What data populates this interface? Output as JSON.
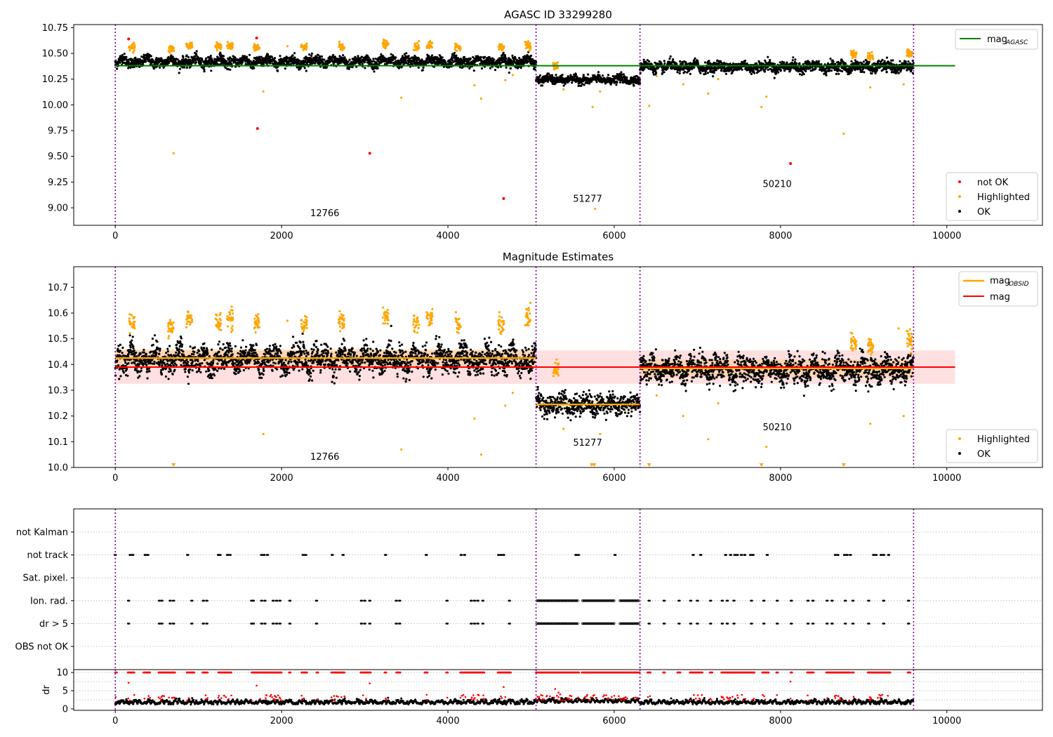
{
  "chart_data": [
    {
      "type": "scatter",
      "title": "AGASC ID 33299280",
      "xlim": [
        -500,
        11150
      ],
      "ylim": [
        8.83,
        10.78
      ],
      "xticks": [
        0,
        2000,
        4000,
        6000,
        8000,
        10000
      ],
      "yticks": [
        9.0,
        9.25,
        9.5,
        9.75,
        10.0,
        10.25,
        10.5,
        10.75
      ],
      "ytick_labels": [
        "9.00",
        "9.25",
        "9.50",
        "9.75",
        "10.00",
        "10.25",
        "10.50",
        "10.75"
      ],
      "obsid_boundaries": [
        0,
        5060,
        6310,
        9600
      ],
      "obsid_labels": [
        {
          "text": "12766",
          "x": 2520,
          "y": 8.92
        },
        {
          "text": "51277",
          "x": 5680,
          "y": 9.06
        },
        {
          "text": "50210",
          "x": 7960,
          "y": 9.2
        }
      ],
      "segments": [
        {
          "x0": 0,
          "x1": 5060,
          "base": 10.42,
          "amp": 0.035,
          "noise": 0.025
        },
        {
          "x0": 5060,
          "x1": 6310,
          "base": 10.245,
          "amp": 0.02,
          "noise": 0.02
        },
        {
          "x0": 6310,
          "x1": 9600,
          "base": 10.37,
          "amp": 0.03,
          "noise": 0.025
        }
      ],
      "reference_lines": [
        {
          "name": "mag_AGASC",
          "y": 10.38,
          "x0": 0,
          "x1": 10100,
          "color": "#008000"
        }
      ],
      "highlighted_clusters": [
        {
          "x": 200,
          "y": 10.56
        },
        {
          "x": 670,
          "y": 10.54
        },
        {
          "x": 890,
          "y": 10.58
        },
        {
          "x": 1240,
          "y": 10.57
        },
        {
          "x": 1380,
          "y": 10.58
        },
        {
          "x": 1700,
          "y": 10.56
        },
        {
          "x": 2270,
          "y": 10.56
        },
        {
          "x": 2720,
          "y": 10.57
        },
        {
          "x": 3250,
          "y": 10.59
        },
        {
          "x": 3620,
          "y": 10.56
        },
        {
          "x": 3780,
          "y": 10.58
        },
        {
          "x": 4120,
          "y": 10.56
        },
        {
          "x": 4640,
          "y": 10.56
        },
        {
          "x": 4960,
          "y": 10.58
        },
        {
          "x": 5300,
          "y": 10.38
        },
        {
          "x": 8880,
          "y": 10.49
        },
        {
          "x": 9080,
          "y": 10.47
        },
        {
          "x": 9550,
          "y": 10.5
        }
      ],
      "highlighted_points": [
        {
          "x": 700,
          "y": 9.53
        },
        {
          "x": 1780,
          "y": 10.13
        },
        {
          "x": 2070,
          "y": 10.57
        },
        {
          "x": 3440,
          "y": 10.07
        },
        {
          "x": 4320,
          "y": 10.19
        },
        {
          "x": 4400,
          "y": 10.06
        },
        {
          "x": 4690,
          "y": 10.24
        },
        {
          "x": 4780,
          "y": 10.29
        },
        {
          "x": 5390,
          "y": 10.15
        },
        {
          "x": 5740,
          "y": 9.98
        },
        {
          "x": 5770,
          "y": 8.99
        },
        {
          "x": 5830,
          "y": 10.13
        },
        {
          "x": 6420,
          "y": 9.99
        },
        {
          "x": 6510,
          "y": 10.28
        },
        {
          "x": 6830,
          "y": 10.2
        },
        {
          "x": 7130,
          "y": 10.11
        },
        {
          "x": 7250,
          "y": 10.25
        },
        {
          "x": 7770,
          "y": 9.98
        },
        {
          "x": 7830,
          "y": 10.08
        },
        {
          "x": 8760,
          "y": 9.72
        },
        {
          "x": 9080,
          "y": 10.17
        },
        {
          "x": 9480,
          "y": 10.2
        }
      ],
      "not_ok_points": [
        {
          "x": 160,
          "y": 10.64
        },
        {
          "x": 1700,
          "y": 10.65
        },
        {
          "x": 1710,
          "y": 9.77
        },
        {
          "x": 3060,
          "y": 9.53
        },
        {
          "x": 4670,
          "y": 9.09
        },
        {
          "x": 8120,
          "y": 9.43
        }
      ],
      "legends": [
        {
          "position": "top-right",
          "entries": [
            {
              "label": "mag",
              "sub": "AGASC",
              "kind": "line",
              "color": "#008000"
            }
          ]
        },
        {
          "position": "lower-right",
          "entries": [
            {
              "label": "not OK",
              "kind": "marker",
              "color": "#ff0000"
            },
            {
              "label": "Highlighted",
              "kind": "marker",
              "color": "#ffa500"
            },
            {
              "label": "OK",
              "kind": "marker",
              "color": "#000000"
            }
          ]
        }
      ]
    },
    {
      "type": "scatter",
      "title": "Magnitude Estimates",
      "xlim": [
        -500,
        11150
      ],
      "ylim": [
        10.0,
        10.78
      ],
      "xticks": [
        0,
        2000,
        4000,
        6000,
        8000,
        10000
      ],
      "yticks": [
        10.0,
        10.1,
        10.2,
        10.3,
        10.4,
        10.5,
        10.6,
        10.7
      ],
      "ytick_labels": [
        "10.0",
        "10.1",
        "10.2",
        "10.3",
        "10.4",
        "10.5",
        "10.6",
        "10.7"
      ],
      "obsid_boundaries": [
        0,
        5060,
        6310,
        9600
      ],
      "obsid_labels": [
        {
          "text": "12766",
          "x": 2520,
          "y": 10.03
        },
        {
          "text": "51277",
          "x": 5680,
          "y": 10.085
        },
        {
          "text": "50210",
          "x": 7960,
          "y": 10.145
        }
      ],
      "segments": [
        {
          "x0": 0,
          "x1": 5060,
          "base": 10.42,
          "amp": 0.035,
          "noise": 0.025
        },
        {
          "x0": 5060,
          "x1": 6310,
          "base": 10.245,
          "amp": 0.02,
          "noise": 0.02
        },
        {
          "x0": 6310,
          "x1": 9600,
          "base": 10.38,
          "amp": 0.03,
          "noise": 0.025
        }
      ],
      "mag_band": {
        "y0": 10.325,
        "y1": 10.455,
        "x0": 0,
        "x1": 10100,
        "color": "#ff0000"
      },
      "obsid_mags": [
        {
          "x0": 0,
          "x1": 5060,
          "y": 10.425,
          "band": 0.035
        },
        {
          "x0": 5060,
          "x1": 6310,
          "y": 10.245,
          "band": 0.02
        },
        {
          "x0": 6310,
          "x1": 9600,
          "y": 10.385,
          "band": 0.035
        }
      ],
      "reference_lines": [
        {
          "name": "mag",
          "y": 10.39,
          "x0": 0,
          "x1": 10100,
          "color": "#ff0000"
        }
      ],
      "highlighted_clusters": [
        {
          "x": 200,
          "y": 10.56
        },
        {
          "x": 670,
          "y": 10.54
        },
        {
          "x": 890,
          "y": 10.58
        },
        {
          "x": 1240,
          "y": 10.57
        },
        {
          "x": 1380,
          "y": 10.58
        },
        {
          "x": 1700,
          "y": 10.56
        },
        {
          "x": 2270,
          "y": 10.56
        },
        {
          "x": 2720,
          "y": 10.57
        },
        {
          "x": 3250,
          "y": 10.59
        },
        {
          "x": 3620,
          "y": 10.56
        },
        {
          "x": 3780,
          "y": 10.58
        },
        {
          "x": 4120,
          "y": 10.56
        },
        {
          "x": 4640,
          "y": 10.56
        },
        {
          "x": 4960,
          "y": 10.58
        },
        {
          "x": 5300,
          "y": 10.38
        },
        {
          "x": 8880,
          "y": 10.49
        },
        {
          "x": 9080,
          "y": 10.47
        },
        {
          "x": 9550,
          "y": 10.5
        }
      ],
      "highlighted_points": [
        {
          "x": 1780,
          "y": 10.13
        },
        {
          "x": 2070,
          "y": 10.57
        },
        {
          "x": 3440,
          "y": 10.07
        },
        {
          "x": 4320,
          "y": 10.19
        },
        {
          "x": 4400,
          "y": 10.05
        },
        {
          "x": 4690,
          "y": 10.24
        },
        {
          "x": 4780,
          "y": 10.29
        },
        {
          "x": 5390,
          "y": 10.15
        },
        {
          "x": 5830,
          "y": 10.13
        },
        {
          "x": 6510,
          "y": 10.28
        },
        {
          "x": 6830,
          "y": 10.2
        },
        {
          "x": 7130,
          "y": 10.11
        },
        {
          "x": 7250,
          "y": 10.25
        },
        {
          "x": 7830,
          "y": 10.08
        },
        {
          "x": 9080,
          "y": 10.17
        },
        {
          "x": 9480,
          "y": 10.2
        },
        {
          "x": 9420,
          "y": 10.54
        }
      ],
      "below_range_markers": [
        700,
        5730,
        5760,
        6420,
        7770,
        8760
      ],
      "legends": [
        {
          "position": "top-right",
          "entries": [
            {
              "label": "mag",
              "sub": "OBSID",
              "kind": "line",
              "color": "#ffa500"
            },
            {
              "label": "mag",
              "kind": "line",
              "color": "#ff0000"
            }
          ]
        },
        {
          "position": "lower-right",
          "entries": [
            {
              "label": "Highlighted",
              "kind": "marker",
              "color": "#ffa500"
            },
            {
              "label": "OK",
              "kind": "marker",
              "color": "#000000"
            }
          ]
        }
      ]
    },
    {
      "type": "scatter",
      "title": "",
      "xlim": [
        -500,
        11150
      ],
      "xticks": [
        0,
        2000,
        4000,
        6000,
        8000,
        10000
      ],
      "flag_labels": [
        "not Kalman",
        "not track",
        "Sat. pixel.",
        "Ion. rad.",
        "dr > 5",
        "OBS not OK"
      ],
      "obsid_boundaries": [
        0,
        5060,
        6310,
        9600
      ],
      "flags": {
        "not track": [
          0,
          180,
          210,
          360,
          390,
          870,
          1240,
          1260,
          1350,
          1380,
          1760,
          1790,
          1830,
          2260,
          2290,
          2610,
          2740,
          3250,
          3740,
          4160,
          4200,
          4610,
          4640,
          4670,
          5540,
          5570,
          6010,
          6950,
          7040,
          7340,
          7400,
          7450,
          7480,
          7530,
          7570,
          7640,
          7670,
          7840,
          8660,
          8690,
          8770,
          8800,
          8840,
          9120,
          9150,
          9210,
          9240,
          9300
        ],
        "Ion. rad.": [
          160,
          530,
          560,
          660,
          700,
          920,
          1060,
          1100,
          1640,
          1660,
          1760,
          1800,
          1900,
          1940,
          1980,
          2100,
          2420,
          2960,
          3000,
          3060,
          3380,
          3420,
          3990,
          4280,
          4320,
          4360,
          4420,
          4740,
          6420,
          6600,
          6780,
          6920,
          7000,
          7160,
          7300,
          7360,
          7440,
          7650,
          7800,
          7960,
          8130,
          8330,
          8390,
          8560,
          8620,
          8780,
          8870,
          9060,
          9240,
          9540
        ],
        "dr > 5": [
          160,
          530,
          560,
          660,
          700,
          920,
          1060,
          1100,
          1640,
          1660,
          1760,
          1800,
          1900,
          1940,
          1980,
          2100,
          2420,
          2960,
          3000,
          3060,
          3380,
          3420,
          3990,
          4280,
          4320,
          4360,
          4420,
          4740,
          6420,
          6600,
          6780,
          6920,
          7000,
          7160,
          7300,
          7360,
          7440,
          7650,
          7800,
          7960,
          8130,
          8330,
          8390,
          8560,
          8620,
          8780,
          8870,
          9060,
          9240,
          9540
        ],
        "dense_ranges": [
          {
            "flag": "Ion. rad.",
            "x0": 5070,
            "x1": 5560
          },
          {
            "flag": "Ion. rad.",
            "x0": 5620,
            "x1": 6010
          },
          {
            "flag": "Ion. rad.",
            "x0": 6070,
            "x1": 6300
          },
          {
            "flag": "dr > 5",
            "x0": 5070,
            "x1": 5560
          },
          {
            "flag": "dr > 5",
            "x0": 5620,
            "x1": 6010
          },
          {
            "flag": "dr > 5",
            "x0": 6070,
            "x1": 6300
          }
        ]
      },
      "dr_panel": {
        "ylabel": "dr",
        "ylim": [
          -0.4,
          10.8
        ],
        "yticks": [
          0,
          5,
          10
        ],
        "ytick_labels": [
          "0",
          "5",
          "10"
        ],
        "clip_value": 10,
        "red_ranges": [
          {
            "x0": 0,
            "x1": 20
          },
          {
            "x0": 150,
            "x1": 230
          },
          {
            "x0": 340,
            "x1": 420
          },
          {
            "x0": 520,
            "x1": 720
          },
          {
            "x0": 860,
            "x1": 950
          },
          {
            "x0": 1050,
            "x1": 1110
          },
          {
            "x0": 1240,
            "x1": 1400
          },
          {
            "x0": 1640,
            "x1": 2000
          },
          {
            "x0": 2090,
            "x1": 2110
          },
          {
            "x0": 2240,
            "x1": 2310
          },
          {
            "x0": 2420,
            "x1": 2440
          },
          {
            "x0": 2600,
            "x1": 2760
          },
          {
            "x0": 2950,
            "x1": 3070
          },
          {
            "x0": 3240,
            "x1": 3260
          },
          {
            "x0": 3380,
            "x1": 3430
          },
          {
            "x0": 3720,
            "x1": 3760
          },
          {
            "x0": 3980,
            "x1": 4000
          },
          {
            "x0": 4150,
            "x1": 4440
          },
          {
            "x0": 4600,
            "x1": 4760
          },
          {
            "x0": 5060,
            "x1": 5580
          },
          {
            "x0": 5610,
            "x1": 6310
          },
          {
            "x0": 6400,
            "x1": 6440
          },
          {
            "x0": 6590,
            "x1": 6610
          },
          {
            "x0": 6760,
            "x1": 6800
          },
          {
            "x0": 6910,
            "x1": 7060
          },
          {
            "x0": 7150,
            "x1": 7180
          },
          {
            "x0": 7290,
            "x1": 7690
          },
          {
            "x0": 7780,
            "x1": 7860
          },
          {
            "x0": 7950,
            "x1": 7970
          },
          {
            "x0": 8120,
            "x1": 8140
          },
          {
            "x0": 8320,
            "x1": 8400
          },
          {
            "x0": 8550,
            "x1": 8840
          },
          {
            "x0": 8860,
            "x1": 8880
          },
          {
            "x0": 9050,
            "x1": 9320
          },
          {
            "x0": 9530,
            "x1": 9560
          }
        ],
        "spikes": [
          {
            "x": 5290,
            "y": 5.5
          },
          {
            "x": 5330,
            "y": 4.5
          },
          {
            "x": 5310,
            "y": 3.6
          },
          {
            "x": 5350,
            "y": 4.0
          },
          {
            "x": 160,
            "y": 7.2
          },
          {
            "x": 1700,
            "y": 6.4
          },
          {
            "x": 3060,
            "y": 7.0
          },
          {
            "x": 4670,
            "y": 6.0
          },
          {
            "x": 8120,
            "y": 7.5
          }
        ]
      }
    }
  ]
}
